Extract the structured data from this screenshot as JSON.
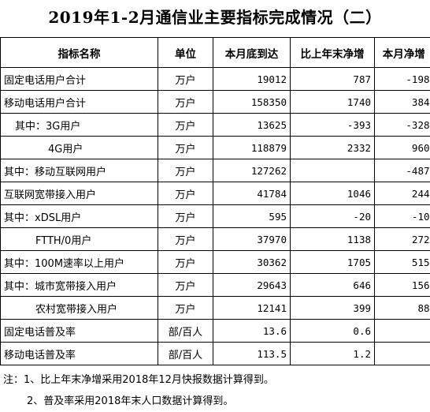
{
  "title": "2019年1-2月通信业主要指标完成情况（二）",
  "table": {
    "header": [
      "指标名称",
      "单位",
      "本月底到达",
      "比上年末净增",
      "本月净增"
    ],
    "rows": [
      [
        "固定电话用户合计",
        "万户",
        "19012",
        "787",
        "-198"
      ],
      [
        "移动电话用户合计",
        "万户",
        "158350",
        "1740",
        "384"
      ],
      [
        "其中：3G用户",
        "万户",
        "13625",
        "-393",
        "-328"
      ],
      [
        "4G用户",
        "万户",
        "118879",
        "2332",
        "960"
      ],
      [
        "其中：移动互联网用户",
        "万户",
        "127262",
        null,
        "-487"
      ],
      [
        "互联网宽带接入用户",
        "万户",
        "41784",
        "1046",
        "244"
      ],
      [
        "其中：xDSL用户",
        "万户",
        "595",
        "-20",
        "-10"
      ],
      [
        "FTTH/0用户",
        "万户",
        "37970",
        "1138",
        "272"
      ],
      [
        "其中：100M速率以上用户",
        "万户",
        "30362",
        "1705",
        "515"
      ],
      [
        "其中：城市宽带接入用户",
        "万户",
        "29643",
        "646",
        "156"
      ],
      [
        "农村宽带接入用户",
        "万户",
        "12141",
        "399",
        "88"
      ],
      [
        "固定电话普及率",
        "部/百人",
        "13.6",
        "0.6",
        null
      ],
      [
        "移动电话普及率",
        "部/百人",
        "113.5",
        "1.2",
        null
      ]
    ]
  },
  "notes": [
    "注：1、比上年末净增采用2018年12月快报数据计算得到。",
    "2、普及率采用2018年末人口数据计算得到。"
  ]
}
